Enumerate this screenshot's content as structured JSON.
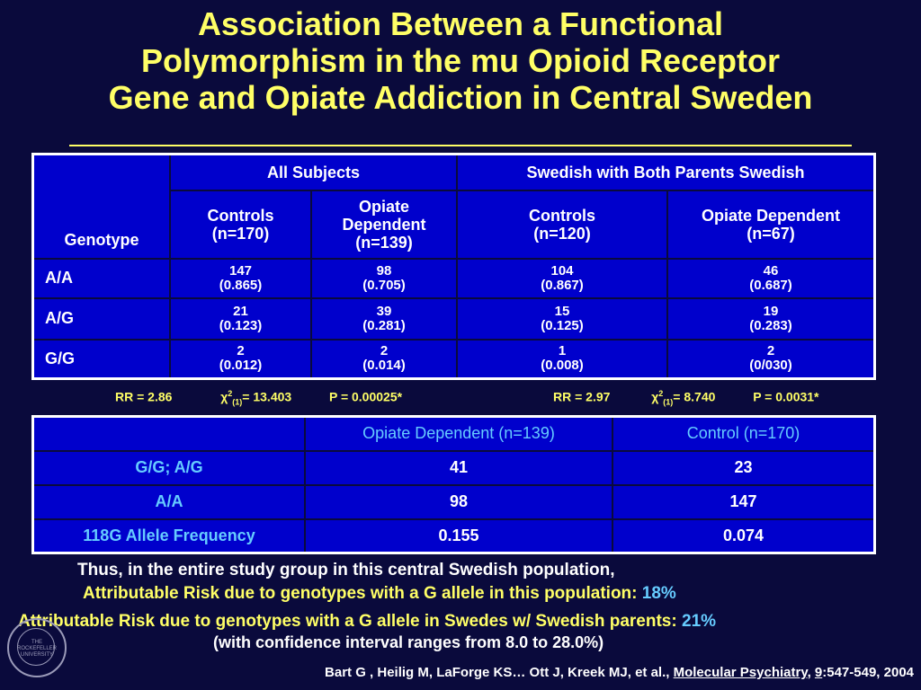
{
  "title": {
    "line1": "Association Between a Functional",
    "line2": "Polymorphism in the mu Opioid Receptor",
    "line3": "Gene and Opiate Addiction in Central Sweden"
  },
  "table1": {
    "corner": "Genotype",
    "group_all": "All Subjects",
    "group_swedish": "Swedish with Both Parents Swedish",
    "cols": [
      {
        "label": "Controls",
        "n": "(n=170)"
      },
      {
        "label": "Opiate Dependent",
        "n": "(n=139)"
      },
      {
        "label": "Controls",
        "n": "(n=120)"
      },
      {
        "label": "Opiate Dependent",
        "n": "(n=67)"
      }
    ],
    "rows": [
      {
        "genotype": "A/A",
        "cells": [
          [
            "147",
            "(0.865)"
          ],
          [
            "98",
            "(0.705)"
          ],
          [
            "104",
            "(0.867)"
          ],
          [
            "46",
            "(0.687)"
          ]
        ]
      },
      {
        "genotype": "A/G",
        "cells": [
          [
            "21",
            "(0.123)"
          ],
          [
            "39",
            "(0.281)"
          ],
          [
            "15",
            "(0.125)"
          ],
          [
            "19",
            "(0.283)"
          ]
        ]
      },
      {
        "genotype": "G/G",
        "cells": [
          [
            "2",
            "(0.012)"
          ],
          [
            "2",
            "(0.014)"
          ],
          [
            "1",
            "(0.008)"
          ],
          [
            "2",
            "(0/030)"
          ]
        ]
      }
    ]
  },
  "stats_left": {
    "rr": "RR = 2.86",
    "chi_prefix": "χ",
    "chi_sup": "2",
    "chi_sub": "(1)",
    "chi_val": "= 13.403",
    "p": "P = 0.00025*"
  },
  "stats_right": {
    "rr": "RR = 2.97",
    "chi_prefix": "χ",
    "chi_sup": "2",
    "chi_sub": "(1)",
    "chi_val": "= 8.740",
    "p": "P = 0.0031*"
  },
  "table2": {
    "header": [
      "",
      "Opiate Dependent (n=139)",
      "Control (n=170)"
    ],
    "rows": [
      {
        "label": "G/G; A/G",
        "dep": "41",
        "ctl": "23"
      },
      {
        "label": "A/A",
        "dep": "98",
        "ctl": "147"
      },
      {
        "label": "118G Allele Frequency",
        "dep": "0.155",
        "ctl": "0.074"
      }
    ]
  },
  "text": {
    "line1": "Thus, in the entire study group in this central Swedish population,",
    "line2": "Attributable Risk due to genotypes with a G allele in this population: ",
    "line2_val": "18%",
    "line3": "Attributable Risk due to genotypes with a G allele in Swedes w/ Swedish parents: ",
    "line3_val": "21%",
    "line4": "(with confidence interval ranges from 8.0 to 28.0%)"
  },
  "citation": {
    "authors": "Bart G , Heilig M, LaForge KS… Ott J, Kreek MJ, et al., ",
    "journal": "Molecular Psychiatry",
    "sep": ", ",
    "volume": "9",
    "pages": ":547-549, 2004"
  },
  "seal": {
    "text": "THE ROCKEFELLER UNIVERSITY"
  },
  "colors": {
    "background": "#0a0a3c",
    "title": "#ffff66",
    "table_fill": "#0000cc",
    "cyan_text": "#66ccff"
  }
}
